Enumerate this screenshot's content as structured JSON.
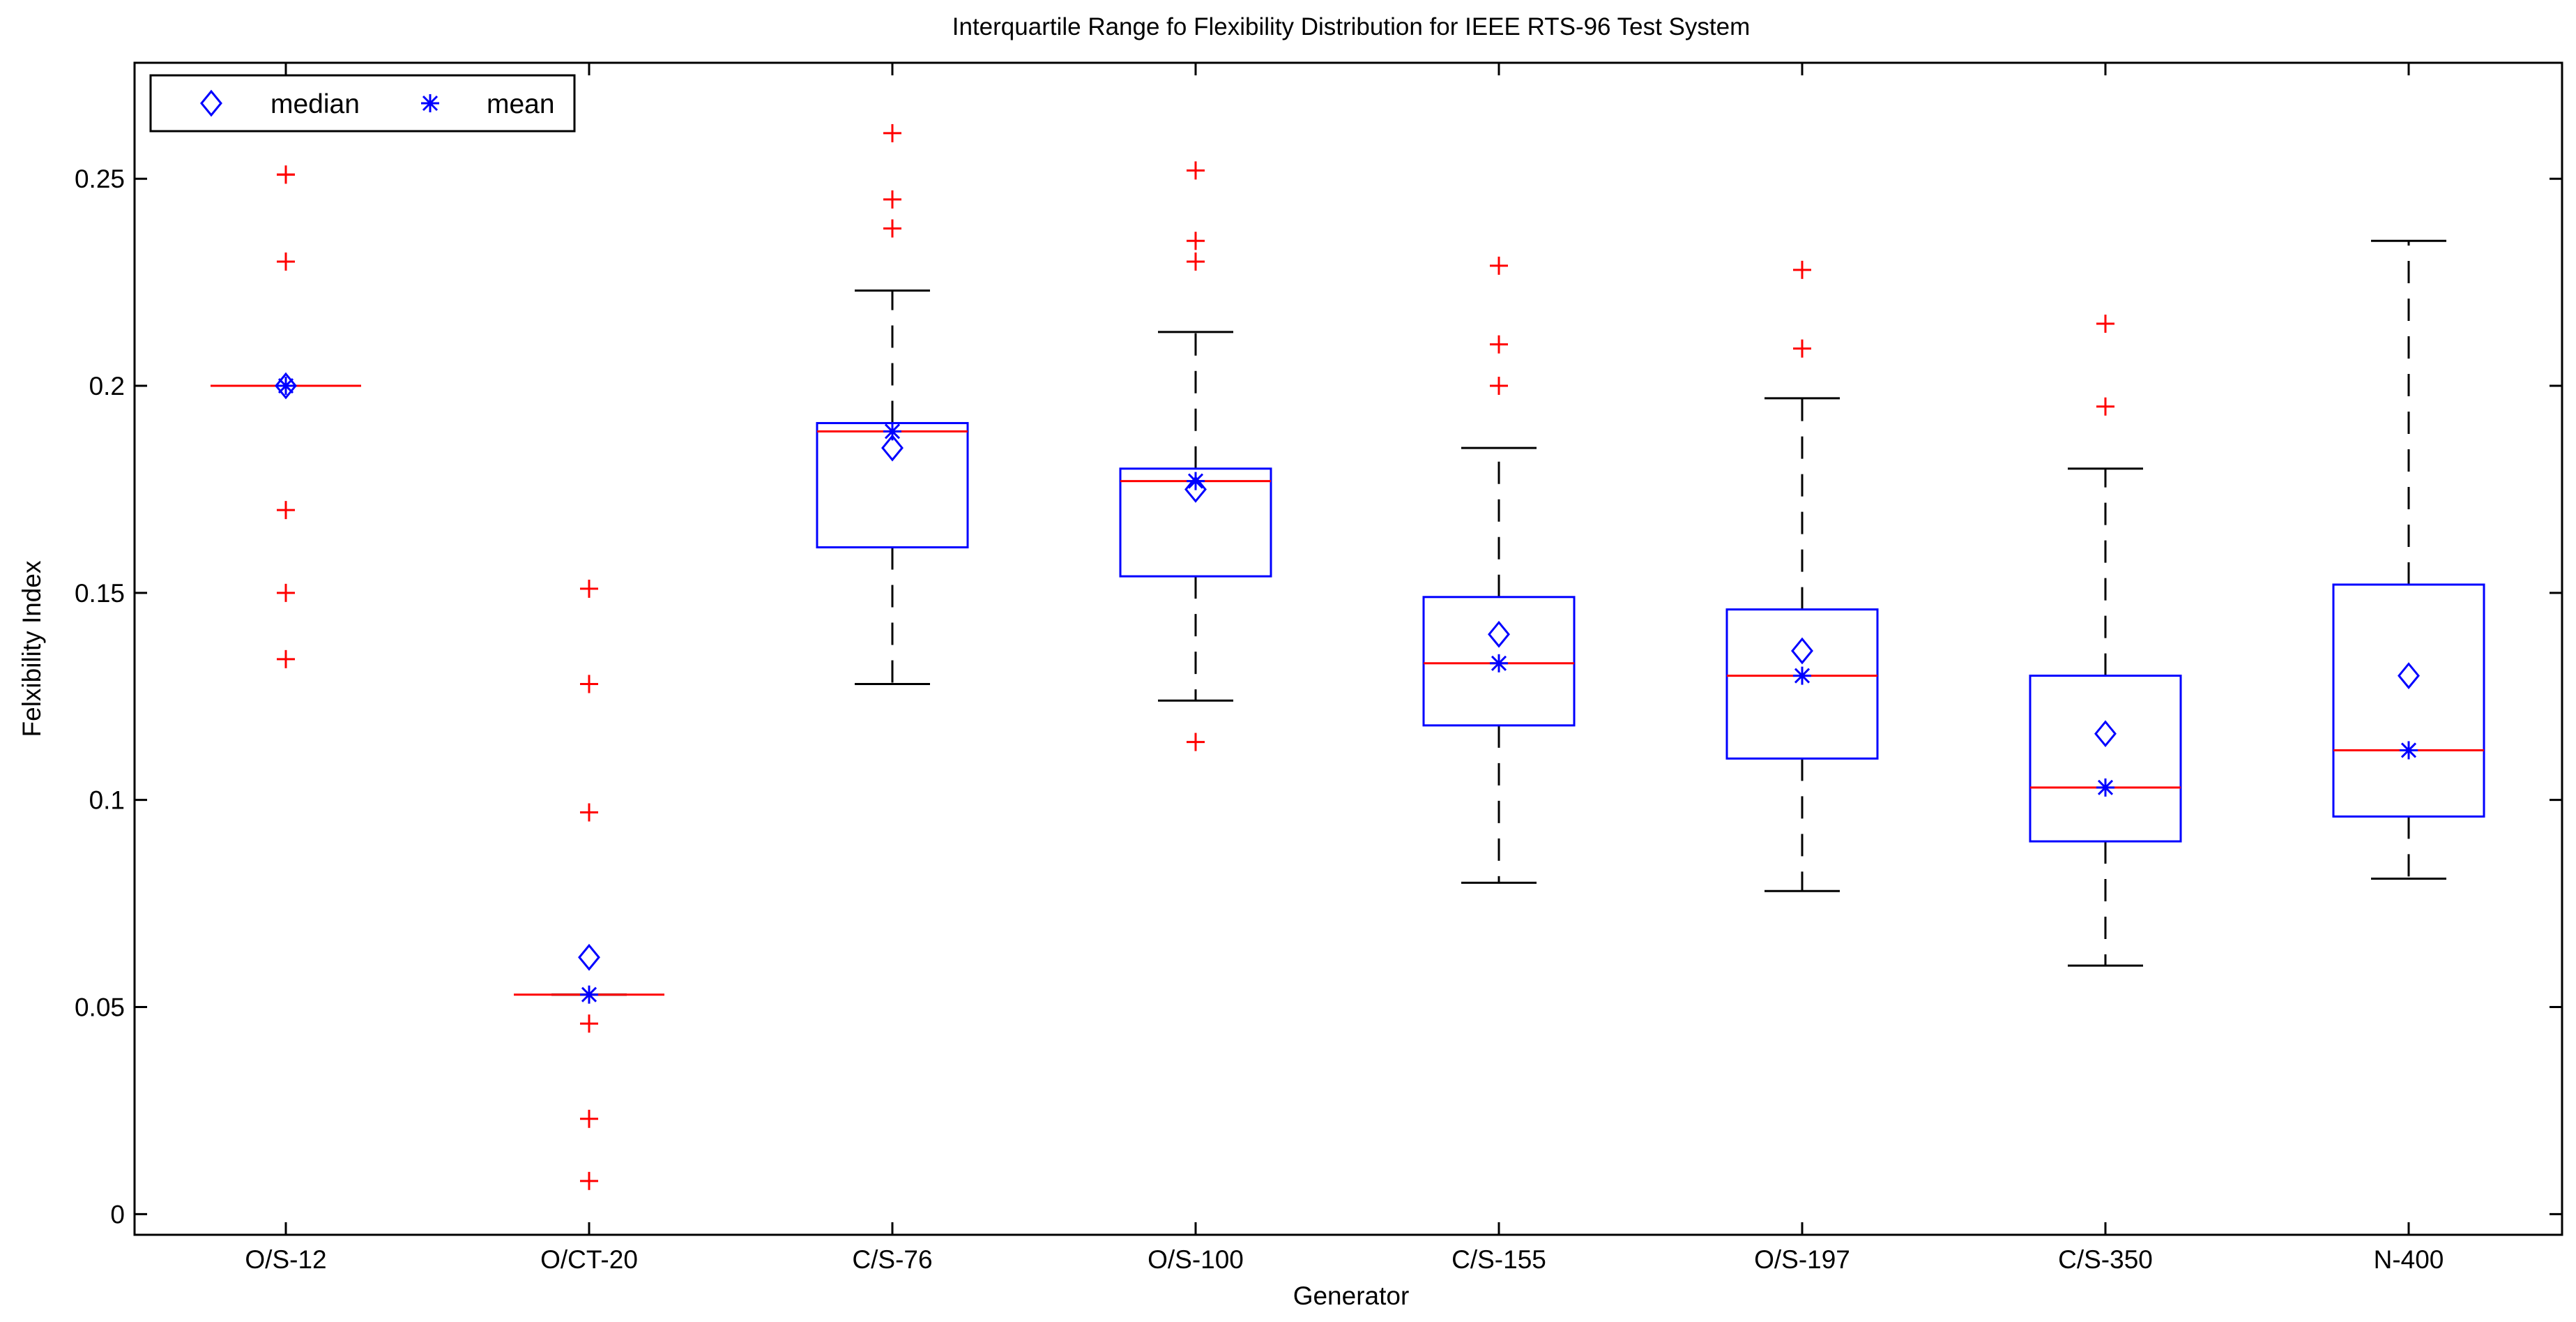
{
  "chart_data": {
    "type": "boxplot",
    "title": "Interquartile Range fo Flexibility Distribution for IEEE RTS-96 Test System",
    "xlabel": "Generator",
    "ylabel": "Felxibility Index",
    "ylim": [
      -0.005,
      0.278
    ],
    "yticks": [
      0,
      0.05,
      0.1,
      0.15,
      0.2,
      0.25
    ],
    "ytick_labels": [
      "0",
      "0.05",
      "0.1",
      "0.15",
      "0.2",
      "0.25"
    ],
    "legend": {
      "position": "top-left",
      "entries": [
        {
          "label": "median",
          "marker": "diamond",
          "color": "#0000ff"
        },
        {
          "label": "mean",
          "marker": "asterisk",
          "color": "#0000ff"
        }
      ]
    },
    "colors": {
      "box": "#0000ff",
      "median_line": "#ff0000",
      "whisker": "#000000",
      "outlier": "#ff0000",
      "marker": "#0000ff",
      "frame": "#000000"
    },
    "categories": [
      "O/S-12",
      "O/CT-20",
      "C/S-76",
      "O/S-100",
      "C/S-155",
      "O/S-197",
      "C/S-350",
      "N-400"
    ],
    "boxes": [
      {
        "q1": 0.2,
        "median": 0.2,
        "q3": 0.2,
        "whisker_low": 0.2,
        "whisker_high": 0.2,
        "outliers": [
          0.251,
          0.251,
          0.23,
          0.17,
          0.15,
          0.134
        ],
        "median_marker": 0.2,
        "mean_marker": 0.2
      },
      {
        "q1": 0.053,
        "median": 0.053,
        "q3": 0.053,
        "whisker_low": 0.053,
        "whisker_high": 0.053,
        "outliers": [
          0.151,
          0.128,
          0.128,
          0.097,
          0.046,
          0.023,
          0.008
        ],
        "median_marker": 0.062,
        "mean_marker": 0.053
      },
      {
        "q1": 0.161,
        "median": 0.189,
        "q3": 0.191,
        "whisker_low": 0.128,
        "whisker_high": 0.223,
        "outliers": [
          0.261,
          0.245,
          0.238
        ],
        "median_marker": 0.185,
        "mean_marker": 0.189
      },
      {
        "q1": 0.154,
        "median": 0.177,
        "q3": 0.18,
        "whisker_low": 0.124,
        "whisker_high": 0.213,
        "outliers": [
          0.252,
          0.235,
          0.23,
          0.114
        ],
        "median_marker": 0.175,
        "mean_marker": 0.177
      },
      {
        "q1": 0.118,
        "median": 0.133,
        "q3": 0.149,
        "whisker_low": 0.08,
        "whisker_high": 0.185,
        "outliers": [
          0.229,
          0.21,
          0.2
        ],
        "median_marker": 0.14,
        "mean_marker": 0.133
      },
      {
        "q1": 0.11,
        "median": 0.13,
        "q3": 0.146,
        "whisker_low": 0.078,
        "whisker_high": 0.197,
        "outliers": [
          0.228,
          0.209
        ],
        "median_marker": 0.136,
        "mean_marker": 0.13
      },
      {
        "q1": 0.09,
        "median": 0.103,
        "q3": 0.13,
        "whisker_low": 0.06,
        "whisker_high": 0.18,
        "outliers": [
          0.215,
          0.195
        ],
        "median_marker": 0.116,
        "mean_marker": 0.103
      },
      {
        "q1": 0.096,
        "median": 0.112,
        "q3": 0.152,
        "whisker_low": 0.081,
        "whisker_high": 0.235,
        "outliers": [],
        "median_marker": 0.13,
        "mean_marker": 0.112
      }
    ]
  }
}
